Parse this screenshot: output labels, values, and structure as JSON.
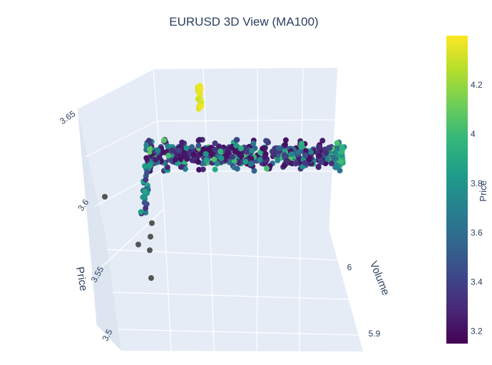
{
  "chart_data": {
    "type": "scatter3d",
    "title": "EURUSD 3D View (MA100)",
    "axes": {
      "price": {
        "label": "Price",
        "ticks": [
          "3.5",
          "3.55",
          "3.6",
          "3.65"
        ],
        "range": [
          3.49,
          3.66
        ]
      },
      "volume": {
        "label": "Volume",
        "ticks": [
          "5.9",
          "6"
        ],
        "range": [
          5.85,
          6.05
        ]
      }
    },
    "colorbar": {
      "title": "Price",
      "colorscale": "Viridis",
      "range": [
        3.15,
        4.4
      ],
      "ticks": [
        "3.2",
        "3.4",
        "3.6",
        "3.8",
        "4",
        "4.2"
      ],
      "colors": [
        "#440154",
        "#482878",
        "#3e4989",
        "#31688e",
        "#26828e",
        "#1f9e89",
        "#35b779",
        "#6ece58",
        "#b5de2b",
        "#fde725"
      ]
    },
    "background_color": "#e5ecf6",
    "grid": true,
    "marker_color_outlier": "#555555",
    "points": {
      "main_band_price_approx": 3.625,
      "main_band_count_approx": 600,
      "main_band_color_range": [
        3.2,
        4.1
      ],
      "top_cluster_price_approx": 3.66,
      "top_cluster_color": [
        4.3,
        4.4
      ],
      "outliers": [
        {
          "price": 3.605,
          "volume": 5.985
        },
        {
          "price": 3.585,
          "volume": 5.975
        },
        {
          "price": 3.575,
          "volume": 5.97
        },
        {
          "price": 3.565,
          "volume": 5.965
        },
        {
          "price": 3.56,
          "volume": 5.96
        },
        {
          "price": 3.545,
          "volume": 5.955
        }
      ]
    }
  }
}
